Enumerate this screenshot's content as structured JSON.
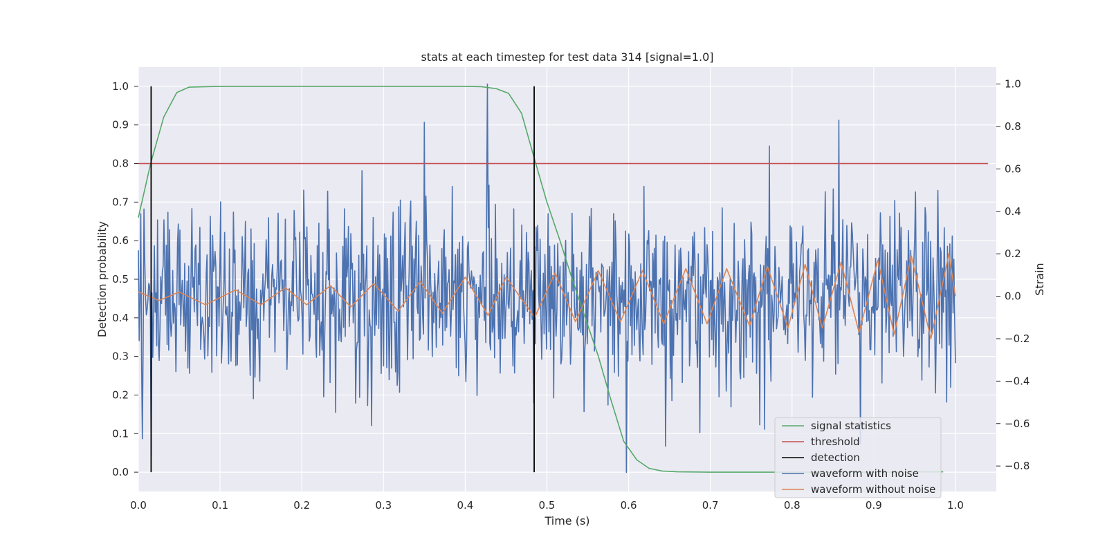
{
  "chart_data": {
    "type": "line",
    "title": "stats at each timestep for test data 314 [signal=1.0]",
    "xlabel": "Time (s)",
    "ylabel": "Detection probability",
    "y2label": "Strain",
    "xlim": [
      0.0,
      1.05
    ],
    "ylim": [
      -0.05,
      1.05
    ],
    "y2lim": [
      -0.92,
      1.08
    ],
    "grid": true,
    "legend_position": "lower right",
    "x_ticks": [
      "0.0",
      "0.1",
      "0.2",
      "0.3",
      "0.4",
      "0.5",
      "0.6",
      "0.7",
      "0.8",
      "0.9",
      "1.0"
    ],
    "y_ticks": [
      "0.0",
      "0.1",
      "0.2",
      "0.3",
      "0.4",
      "0.5",
      "0.6",
      "0.7",
      "0.8",
      "0.9",
      "1.0"
    ],
    "y2_ticks": [
      "−0.8",
      "−0.6",
      "−0.4",
      "−0.2",
      "0.0",
      "0.2",
      "0.4",
      "0.6",
      "0.8",
      "1.0"
    ],
    "colors": {
      "signal": "#55a868",
      "threshold": "#c44e52",
      "detection": "#000000",
      "noisy": "#4c72b0",
      "clean": "#dd8452",
      "plot_bg": "#eaeaf2",
      "grid": "#ffffff"
    },
    "series": [
      {
        "name": "signal statistics",
        "axis": "left",
        "x": [
          0.0,
          0.015,
          0.031,
          0.047,
          0.062,
          0.1,
          0.2,
          0.3,
          0.4,
          0.42,
          0.438,
          0.453,
          0.469,
          0.485,
          0.5,
          0.516,
          0.531,
          0.547,
          0.563,
          0.578,
          0.594,
          0.61,
          0.625,
          0.641,
          0.66,
          0.7,
          0.8,
          0.9,
          0.985
        ],
        "y": [
          0.66,
          0.8,
          0.92,
          0.984,
          0.998,
          1.0,
          1.0,
          1.0,
          1.0,
          0.999,
          0.994,
          0.982,
          0.93,
          0.81,
          0.7,
          0.6,
          0.5,
          0.4,
          0.3,
          0.19,
          0.08,
          0.032,
          0.01,
          0.003,
          0.001,
          0.0,
          0.0,
          0.0,
          0.001
        ]
      },
      {
        "name": "threshold",
        "axis": "left",
        "x": [
          0.0,
          1.04
        ],
        "y": [
          0.8,
          0.8
        ]
      },
      {
        "name": "detection",
        "axis": "left",
        "x": [
          0.0156,
          0.4844
        ],
        "y": [
          0.0,
          1.0
        ]
      },
      {
        "name": "waveform with noise",
        "axis": "right",
        "description": "noisy strain centred on 0 with standard deviation about 0.22, ranging roughly -0.83 to 1.0; peak 1.0 near t=0.43, minimum -0.83 near t=0.6",
        "x_range": [
          0.0,
          1.0
        ],
        "n": 1024
      },
      {
        "name": "waveform without noise",
        "axis": "right",
        "description": "chirp oscillation centred on 0 whose amplitude grows from about 0.02 to 0.2 and whose frequency rises from about 9 Hz to 20 Hz",
        "x": [
          0.0,
          0.025,
          0.05,
          0.082,
          0.119,
          0.15,
          0.18,
          0.206,
          0.235,
          0.26,
          0.288,
          0.318,
          0.345,
          0.372,
          0.4,
          0.428,
          0.45,
          0.485,
          0.51,
          0.535,
          0.563,
          0.59,
          0.617,
          0.643,
          0.67,
          0.696,
          0.72,
          0.748,
          0.77,
          0.795,
          0.816,
          0.837,
          0.86,
          0.882,
          0.905,
          0.925,
          0.946,
          0.97,
          0.992,
          1.0
        ],
        "y": [
          0.02,
          -0.02,
          0.02,
          -0.04,
          0.03,
          -0.04,
          0.04,
          -0.04,
          0.05,
          -0.05,
          0.06,
          -0.07,
          0.07,
          -0.08,
          0.09,
          -0.09,
          0.09,
          -0.1,
          0.11,
          -0.12,
          0.12,
          -0.12,
          0.12,
          -0.13,
          0.13,
          -0.13,
          0.13,
          -0.14,
          0.14,
          -0.15,
          0.15,
          -0.15,
          0.16,
          -0.17,
          0.17,
          -0.18,
          0.19,
          -0.2,
          0.2,
          0.0
        ]
      }
    ]
  }
}
